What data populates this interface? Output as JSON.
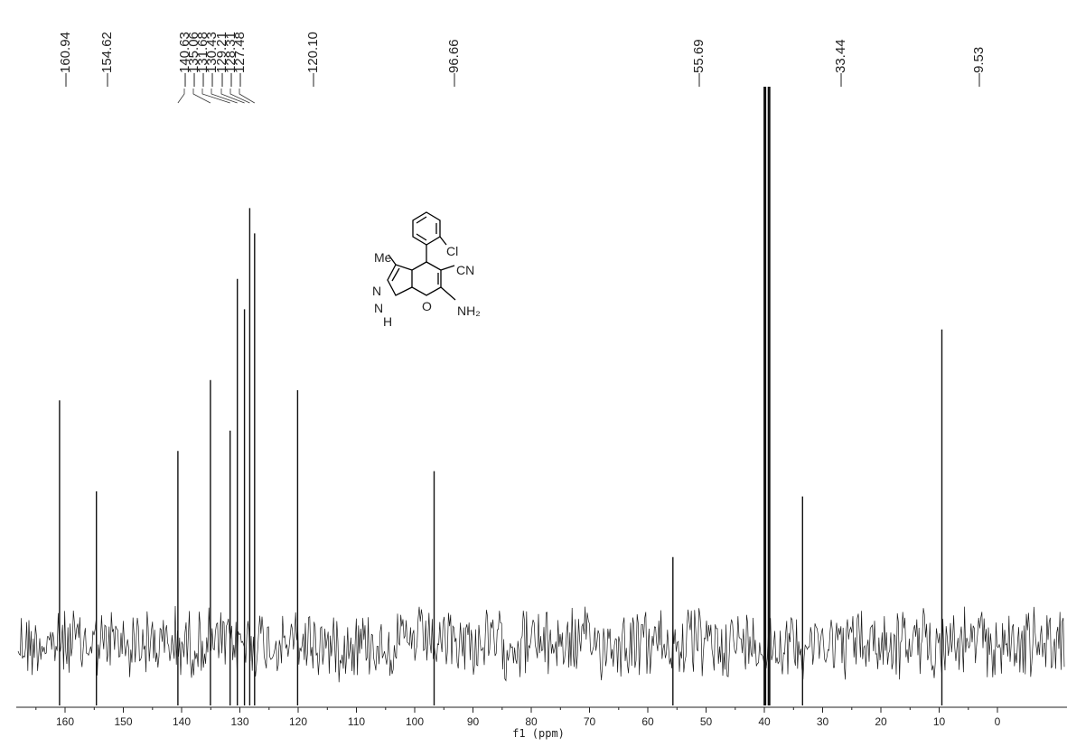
{
  "chart_data": {
    "type": "line",
    "title": "",
    "xlabel": "f1 (ppm)",
    "ylabel": "",
    "xlim": [
      166,
      -4
    ],
    "x_direction": "descending",
    "grid": false,
    "x_ticks": [
      160,
      150,
      140,
      130,
      120,
      110,
      100,
      90,
      80,
      70,
      60,
      50,
      40,
      30,
      20,
      10,
      0
    ],
    "peak_labels": [
      "160.94",
      "154.62",
      "140.63",
      "135.06",
      "131.68",
      "130.43",
      "129.21",
      "128.31",
      "127.48",
      "120.10",
      "96.66",
      "55.69",
      "33.44",
      "9.53"
    ],
    "peaks": [
      {
        "ppm": 160.94,
        "intensity": 0.48
      },
      {
        "ppm": 154.62,
        "intensity": 0.3
      },
      {
        "ppm": 140.63,
        "intensity": 0.38
      },
      {
        "ppm": 135.06,
        "intensity": 0.52
      },
      {
        "ppm": 131.68,
        "intensity": 0.42
      },
      {
        "ppm": 130.43,
        "intensity": 0.72
      },
      {
        "ppm": 129.21,
        "intensity": 0.66
      },
      {
        "ppm": 128.31,
        "intensity": 0.86
      },
      {
        "ppm": 127.48,
        "intensity": 0.81
      },
      {
        "ppm": 120.1,
        "intensity": 0.5
      },
      {
        "ppm": 96.66,
        "intensity": 0.34
      },
      {
        "ppm": 55.69,
        "intensity": 0.17
      },
      {
        "ppm": 39.9,
        "intensity": 1.1
      },
      {
        "ppm": 39.2,
        "intensity": 1.1
      },
      {
        "ppm": 33.44,
        "intensity": 0.29
      },
      {
        "ppm": 9.53,
        "intensity": 0.62
      }
    ],
    "noise_amplitude": 0.07
  },
  "structure": {
    "substituent_me": "Me",
    "substituent_cl": "Cl",
    "substituent_cn": "CN",
    "substituent_nh2": "NH₂",
    "atom_n": "N",
    "atom_nh": "N",
    "atom_h": "H",
    "atom_o": "O",
    "colors": {
      "me": "#1a1aa0",
      "cl": "#1e7a1e",
      "cn": "#d01818",
      "nh2": "#d01818",
      "nitrogen": "#d020d0",
      "oxygen": "#1a1aa0",
      "bonds": "#000000"
    }
  }
}
